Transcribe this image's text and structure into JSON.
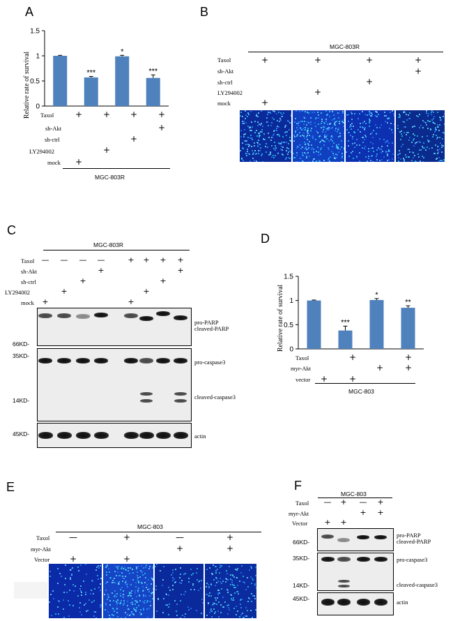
{
  "A": {
    "letter": "A",
    "ylabel": "Relative rate of survival",
    "yticks": [
      "0",
      "0.5",
      "1",
      "1.5"
    ],
    "rows": [
      {
        "label": "Taxol",
        "marks": [
          "+",
          "+",
          "+",
          "+"
        ]
      },
      {
        "label": "sh-Akt",
        "marks": [
          "",
          "",
          "",
          "+"
        ]
      },
      {
        "label": "sh-ctrl",
        "marks": [
          "",
          "",
          "+",
          ""
        ]
      },
      {
        "label": "LY294002",
        "marks": [
          "",
          "+",
          "",
          ""
        ]
      },
      {
        "label": "mock",
        "marks": [
          "+",
          "",
          "",
          ""
        ]
      }
    ],
    "group": "MGC-803R"
  },
  "B": {
    "letter": "B",
    "group": "MGC-803R",
    "rows": [
      {
        "label": "Taxol",
        "marks": [
          "+",
          "+",
          "+",
          "+"
        ]
      },
      {
        "label": "sh-Akt",
        "marks": [
          "",
          "",
          "",
          "+"
        ]
      },
      {
        "label": "sh-ctrl",
        "marks": [
          "",
          "",
          "+",
          ""
        ]
      },
      {
        "label": "LY294002",
        "marks": [
          "",
          "+",
          "",
          ""
        ]
      },
      {
        "label": "mock",
        "marks": [
          "+",
          "",
          "",
          ""
        ]
      }
    ]
  },
  "C": {
    "letter": "C",
    "group": "MGC-803R",
    "rows": [
      {
        "label": "Taxol",
        "marks": [
          "—",
          "—",
          "—",
          "—",
          "+",
          "+",
          "+",
          "+"
        ]
      },
      {
        "label": "sh-Akt",
        "marks": [
          "",
          "",
          "",
          "+",
          "",
          "",
          "",
          "+"
        ]
      },
      {
        "label": "sh-ctrl",
        "marks": [
          "",
          "",
          "+",
          "",
          "",
          "",
          "+",
          ""
        ]
      },
      {
        "label": "LY294002",
        "marks": [
          "",
          "+",
          "",
          "",
          "",
          "+",
          "",
          ""
        ]
      },
      {
        "label": "mock",
        "marks": [
          "+",
          "",
          "",
          "",
          "+",
          "",
          "",
          ""
        ]
      }
    ],
    "mw": [
      "66KD-",
      "35KD-",
      "14KD-",
      "45KD-"
    ],
    "bands": [
      "pro-PARP",
      "cleaved-PARP",
      "pro-caspase3",
      "cleaved-caspase3",
      "actin"
    ]
  },
  "D": {
    "letter": "D",
    "ylabel": "Relative rate of survival",
    "yticks": [
      "0",
      "0.5",
      "1",
      "1.5"
    ],
    "rows": [
      {
        "label": "Taxol",
        "marks": [
          "",
          "+",
          "",
          "+"
        ]
      },
      {
        "label": "myr-Akt",
        "marks": [
          "",
          "",
          "+",
          "+"
        ]
      },
      {
        "label": "vector",
        "marks": [
          "+",
          "+",
          "",
          ""
        ]
      }
    ],
    "group": "MGC-803"
  },
  "E": {
    "letter": "E",
    "group": "MGC-803",
    "rows": [
      {
        "label": "Taxol",
        "marks": [
          "—",
          "+",
          "—",
          "+"
        ]
      },
      {
        "label": "myr-Akt",
        "marks": [
          "",
          "",
          "+",
          "+"
        ]
      },
      {
        "label": "Vector",
        "marks": [
          "+",
          "+",
          "",
          ""
        ]
      }
    ]
  },
  "F": {
    "letter": "F",
    "group": "MGC-803",
    "rows": [
      {
        "label": "Taxol",
        "marks": [
          "—",
          "+",
          "—",
          "+"
        ]
      },
      {
        "label": "myr-Akt",
        "marks": [
          "",
          "",
          "+",
          "+"
        ]
      },
      {
        "label": "Vector",
        "marks": [
          "+",
          "+",
          "",
          ""
        ]
      }
    ],
    "mw": [
      "66KD-",
      "35KD-",
      "14KD-",
      "45KD-"
    ],
    "bands": [
      "pro-PARP",
      "cleaved-PARP",
      "pro-caspase3",
      "cleaved-caspase3",
      "actin"
    ]
  },
  "chart_data": [
    {
      "type": "bar",
      "panel": "A",
      "categories": [
        "mock",
        "LY294002",
        "sh-ctrl",
        "sh-Akt"
      ],
      "values": [
        1.0,
        0.57,
        0.99,
        0.56
      ],
      "errors": [
        0.01,
        0.02,
        0.02,
        0.06
      ],
      "significance": [
        "",
        "***",
        "*",
        "***"
      ],
      "ylabel": "Relative rate of survival",
      "ylim": [
        0,
        1.5
      ],
      "yticks": [
        0,
        0.5,
        1,
        1.5
      ],
      "color": "#4f81bd"
    },
    {
      "type": "bar",
      "panel": "D",
      "categories": [
        "vector",
        "vector+Taxol",
        "myr-Akt",
        "myr-Akt+Taxol"
      ],
      "values": [
        1.0,
        0.38,
        1.01,
        0.85
      ],
      "errors": [
        0.01,
        0.09,
        0.03,
        0.04
      ],
      "significance": [
        "",
        "***",
        "*",
        "**"
      ],
      "ylabel": "Relative rate of survival",
      "ylim": [
        0,
        1.5
      ],
      "yticks": [
        0,
        0.5,
        1,
        1.5
      ],
      "color": "#4f81bd"
    }
  ]
}
